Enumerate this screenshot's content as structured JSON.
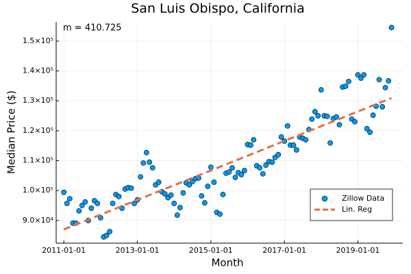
{
  "chart_data": {
    "type": "scatter",
    "title": "San Luis Obispo, California",
    "x_label": "Month",
    "y_label": "Median Price ($)",
    "annotation": "m = 410.725",
    "legend": "bottom right",
    "grid": true,
    "xlim": [
      "2010-10-17",
      "2020-03-22"
    ],
    "xticks": [
      "2011-01-01",
      "2013-01-01",
      "2015-01-01",
      "2017-01-01",
      "2019-01-01"
    ],
    "ylim": [
      82400,
      156400
    ],
    "yticks": [
      {
        "value": 90000,
        "label": "9.0×10⁴"
      },
      {
        "value": 100000,
        "label": "1.0×10⁵"
      },
      {
        "value": 110000,
        "label": "1.1×10⁵"
      },
      {
        "value": 120000,
        "label": "1.2×10⁵"
      },
      {
        "value": 130000,
        "label": "1.3×10⁵"
      },
      {
        "value": 140000,
        "label": "1.4×10⁵"
      },
      {
        "value": 150000,
        "label": "1.5×10⁵"
      }
    ],
    "series": [
      {
        "name": "Zillow Data",
        "type": "scatter",
        "color": "#009af9",
        "x": [
          "2011-01-01",
          "2011-02-01",
          "2011-03-01",
          "2011-04-01",
          "2011-05-01",
          "2011-06-01",
          "2011-07-01",
          "2011-08-01",
          "2011-09-01",
          "2011-10-01",
          "2011-11-01",
          "2011-12-01",
          "2012-01-01",
          "2012-02-01",
          "2012-03-01",
          "2012-04-01",
          "2012-05-01",
          "2012-06-01",
          "2012-07-01",
          "2012-08-01",
          "2012-09-01",
          "2012-10-01",
          "2012-11-01",
          "2012-12-01",
          "2013-01-01",
          "2013-02-01",
          "2013-03-01",
          "2013-04-01",
          "2013-05-01",
          "2013-06-01",
          "2013-07-01",
          "2013-08-01",
          "2013-09-01",
          "2013-10-01",
          "2013-11-01",
          "2013-12-01",
          "2014-01-01",
          "2014-02-01",
          "2014-03-01",
          "2014-04-01",
          "2014-05-01",
          "2014-06-01",
          "2014-07-01",
          "2014-08-01",
          "2014-09-01",
          "2014-10-01",
          "2014-11-01",
          "2014-12-01",
          "2015-01-01",
          "2015-02-01",
          "2015-03-01",
          "2015-04-01",
          "2015-05-01",
          "2015-06-01",
          "2015-07-01",
          "2015-08-01",
          "2015-09-01",
          "2015-10-01",
          "2015-11-01",
          "2015-12-01",
          "2016-01-01",
          "2016-02-01",
          "2016-03-01",
          "2016-04-01",
          "2016-05-01",
          "2016-06-01",
          "2016-07-01",
          "2016-08-01",
          "2016-09-01",
          "2016-10-01",
          "2016-11-01",
          "2016-12-01",
          "2017-01-01",
          "2017-02-01",
          "2017-03-01",
          "2017-04-01",
          "2017-05-01",
          "2017-06-01",
          "2017-07-01",
          "2017-08-01",
          "2017-09-01",
          "2017-10-01",
          "2017-11-01",
          "2017-12-01",
          "2018-01-01",
          "2018-02-01",
          "2018-03-01",
          "2018-04-01",
          "2018-05-01",
          "2018-06-01",
          "2018-07-01",
          "2018-08-01",
          "2018-09-01",
          "2018-10-01",
          "2018-11-01",
          "2018-12-01",
          "2019-01-01",
          "2019-02-01",
          "2019-03-01",
          "2019-04-01",
          "2019-05-01",
          "2019-06-01",
          "2019-07-01",
          "2019-08-01",
          "2019-09-01",
          "2019-10-01",
          "2019-11-01",
          "2019-12-01"
        ],
        "values": [
          99400,
          95700,
          97300,
          89100,
          89100,
          93200,
          95000,
          96200,
          90000,
          94100,
          96600,
          95700,
          90900,
          84500,
          85000,
          86300,
          95700,
          98700,
          98000,
          94100,
          100500,
          101000,
          100800,
          95700,
          96900,
          104600,
          109200,
          112700,
          109500,
          107600,
          101900,
          102800,
          99600,
          98900,
          97600,
          98500,
          95700,
          91800,
          94300,
          99200,
          102600,
          101900,
          103000,
          104000,
          104200,
          98200,
          95900,
          101400,
          107800,
          102800,
          92700,
          92100,
          98700,
          105800,
          106200,
          107600,
          104400,
          106000,
          105300,
          106700,
          115400,
          115200,
          117000,
          108300,
          107600,
          105600,
          108500,
          109700,
          109500,
          111100,
          112000,
          117900,
          116500,
          121600,
          115200,
          115200,
          113600,
          117900,
          117500,
          117000,
          120400,
          123900,
          126400,
          125000,
          133700,
          125000,
          124800,
          115900,
          124100,
          124600,
          122000,
          134600,
          134900,
          136500,
          123900,
          123000,
          138700,
          137600,
          138700,
          120700,
          119500,
          125200,
          128200,
          137100,
          128000,
          134400,
          136700,
          154500
        ]
      },
      {
        "name": "Lin. Reg",
        "type": "line",
        "color": "#e26f46",
        "x": [
          "2011-01-01",
          "2019-12-01"
        ],
        "values": [
          87000,
          130950
        ]
      }
    ]
  }
}
